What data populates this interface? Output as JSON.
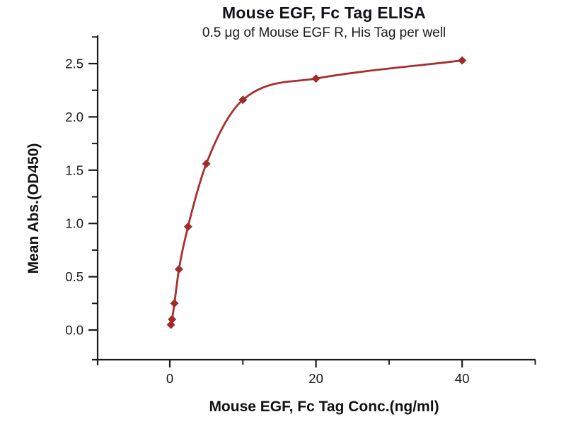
{
  "chart_data": {
    "type": "scatter",
    "title": "Mouse EGF, Fc Tag ELISA",
    "subtitle": "0.5 μg of Mouse EGF R, His Tag per well",
    "xlabel": "Mouse EGF, Fc Tag Conc.(ng/ml)",
    "ylabel": "Mean Abs.(OD450)",
    "x": [
      0.156,
      0.3125,
      0.625,
      1.25,
      2.5,
      5,
      10,
      20,
      40
    ],
    "y": [
      0.05,
      0.1,
      0.25,
      0.57,
      0.97,
      1.56,
      2.16,
      2.36,
      2.53
    ],
    "marker": "diamond",
    "curve": "sigmoidal-fit-line",
    "grid": false,
    "legend_position": "none",
    "xlim": [
      -10,
      50
    ],
    "ylim": [
      -0.28,
      2.78
    ],
    "x_major_ticks": [
      0,
      20,
      40
    ],
    "x_minor_ticks": [
      10,
      30,
      50
    ],
    "y_major_ticks": [
      0.0,
      0.5,
      1.0,
      1.5,
      2.0,
      2.5
    ],
    "y_minor_ticks": [
      0.25,
      0.75,
      1.25,
      1.75,
      2.25,
      2.75
    ],
    "y_tick_decimals": 1,
    "colors": {
      "series": "#A62F2F",
      "marker": "#A02B2B",
      "axis": "#1A1A1A",
      "text": "#1A1A1A",
      "background": "#FFFFFF"
    }
  }
}
